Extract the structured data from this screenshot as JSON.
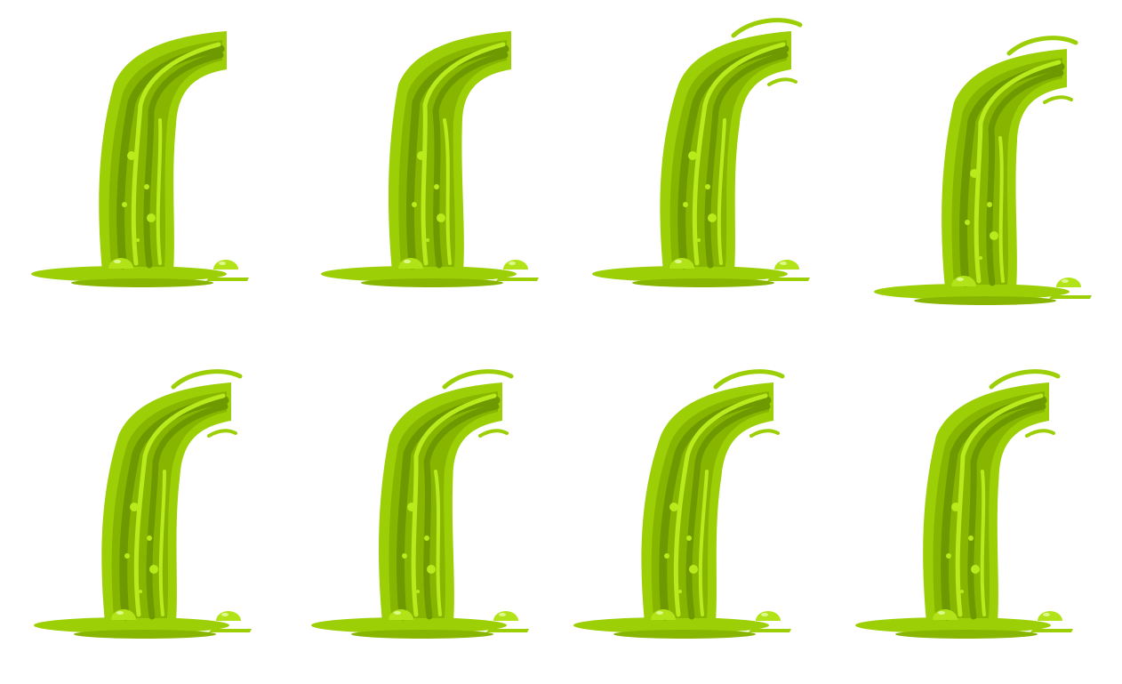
{
  "sprite_sheet": {
    "subject": "slime-waterfall-animation",
    "colors": {
      "outer": "#9ccf06",
      "base": "#88b600",
      "dark": "#6f9900",
      "highlight": "#b8ea1c",
      "bubble": "#b1e318",
      "bubble_shine": "#ddf88c"
    },
    "frames": [
      {
        "index": 1,
        "splash_arc": false
      },
      {
        "index": 2,
        "splash_arc": false
      },
      {
        "index": 3,
        "splash_arc": true
      },
      {
        "index": 4,
        "splash_arc": true
      },
      {
        "index": 5,
        "splash_arc": true
      },
      {
        "index": 6,
        "splash_arc": true
      },
      {
        "index": 7,
        "splash_arc": true
      },
      {
        "index": 8,
        "splash_arc": true
      }
    ]
  }
}
